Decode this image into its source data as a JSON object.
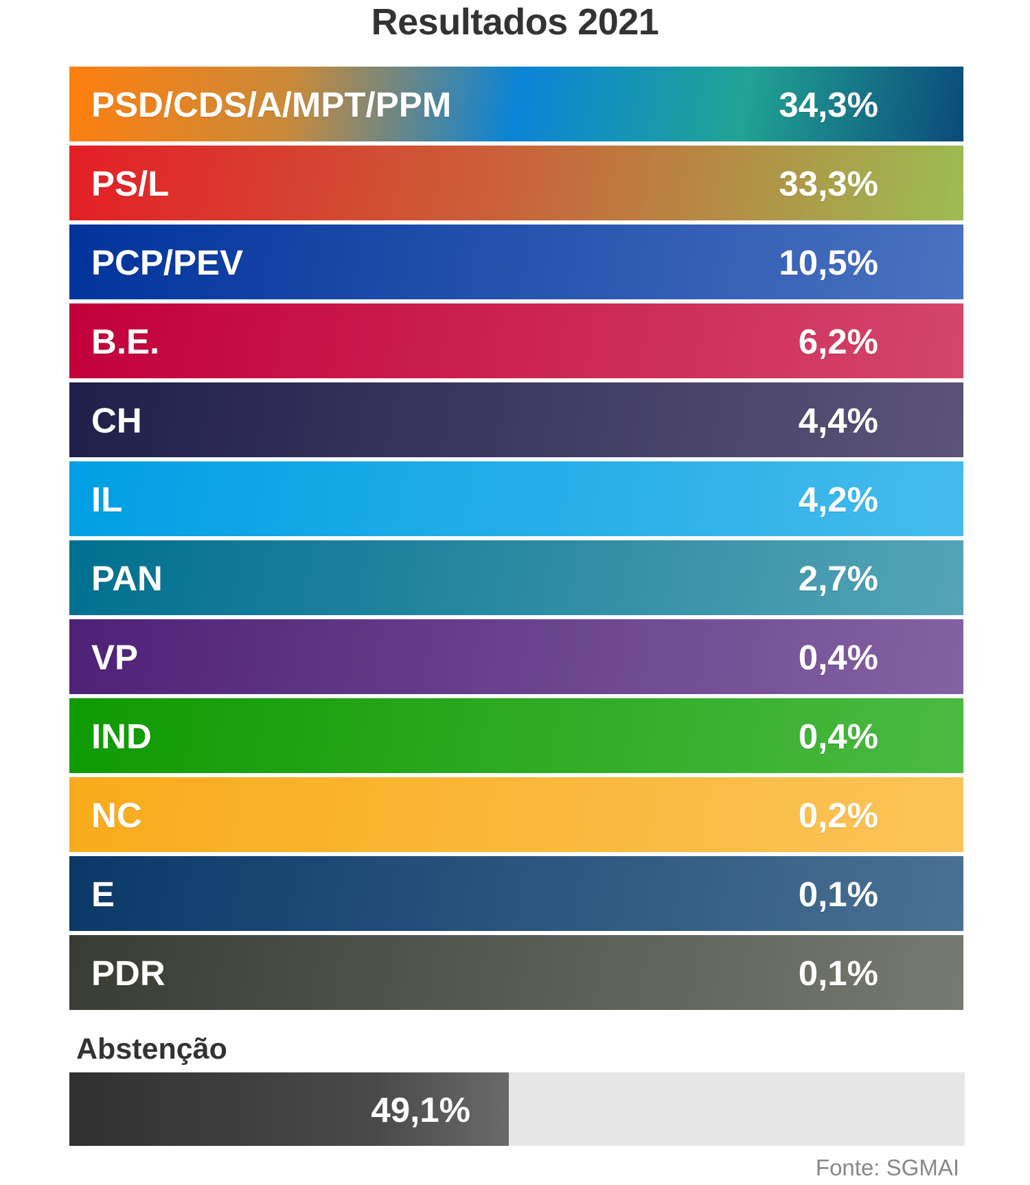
{
  "title": "Resultados 2021",
  "chart_data": {
    "type": "bar",
    "title": "Resultados 2021",
    "unit": "%",
    "categories": [
      "PSD/CDS/A/MPT/PPM",
      "PS/L",
      "PCP/PEV",
      "B.E.",
      "CH",
      "IL",
      "PAN",
      "VP",
      "IND",
      "NC",
      "E",
      "PDR"
    ],
    "values": [
      34.3,
      33.3,
      10.5,
      6.2,
      4.4,
      4.2,
      2.7,
      0.4,
      0.4,
      0.2,
      0.1,
      0.1
    ],
    "value_labels": [
      "34,3%",
      "33,3%",
      "10,5%",
      "6,2%",
      "4,4%",
      "4,2%",
      "2,7%",
      "0,4%",
      "0,4%",
      "0,2%",
      "0,1%",
      "0,1%"
    ],
    "bar_colors": [
      [
        "#ff7f0e",
        "#c98a3a",
        "#0a84d6",
        "#22a394",
        "#0b4a7a"
      ],
      [
        "#e41e26",
        "#c9633a",
        "#9cbd52"
      ],
      [
        "#01339b",
        "#4a72c0"
      ],
      [
        "#c2003a",
        "#d4466a"
      ],
      [
        "#1f1f4a",
        "#5c5478"
      ],
      [
        "#009fe3",
        "#46bbec"
      ],
      [
        "#006f8f",
        "#55a4b6"
      ],
      [
        "#4e2177",
        "#8462a2"
      ],
      [
        "#0f9a00",
        "#4bba43"
      ],
      [
        "#f9ab1b",
        "#fbc458"
      ],
      [
        "#0a3868",
        "#4a7194"
      ],
      [
        "#383c33",
        "#767a70"
      ]
    ],
    "abstention": {
      "label": "Abstenção",
      "value": 49.1,
      "value_label": "49,1%",
      "scale_max": 100
    },
    "source": "Fonte: SGMAI"
  }
}
